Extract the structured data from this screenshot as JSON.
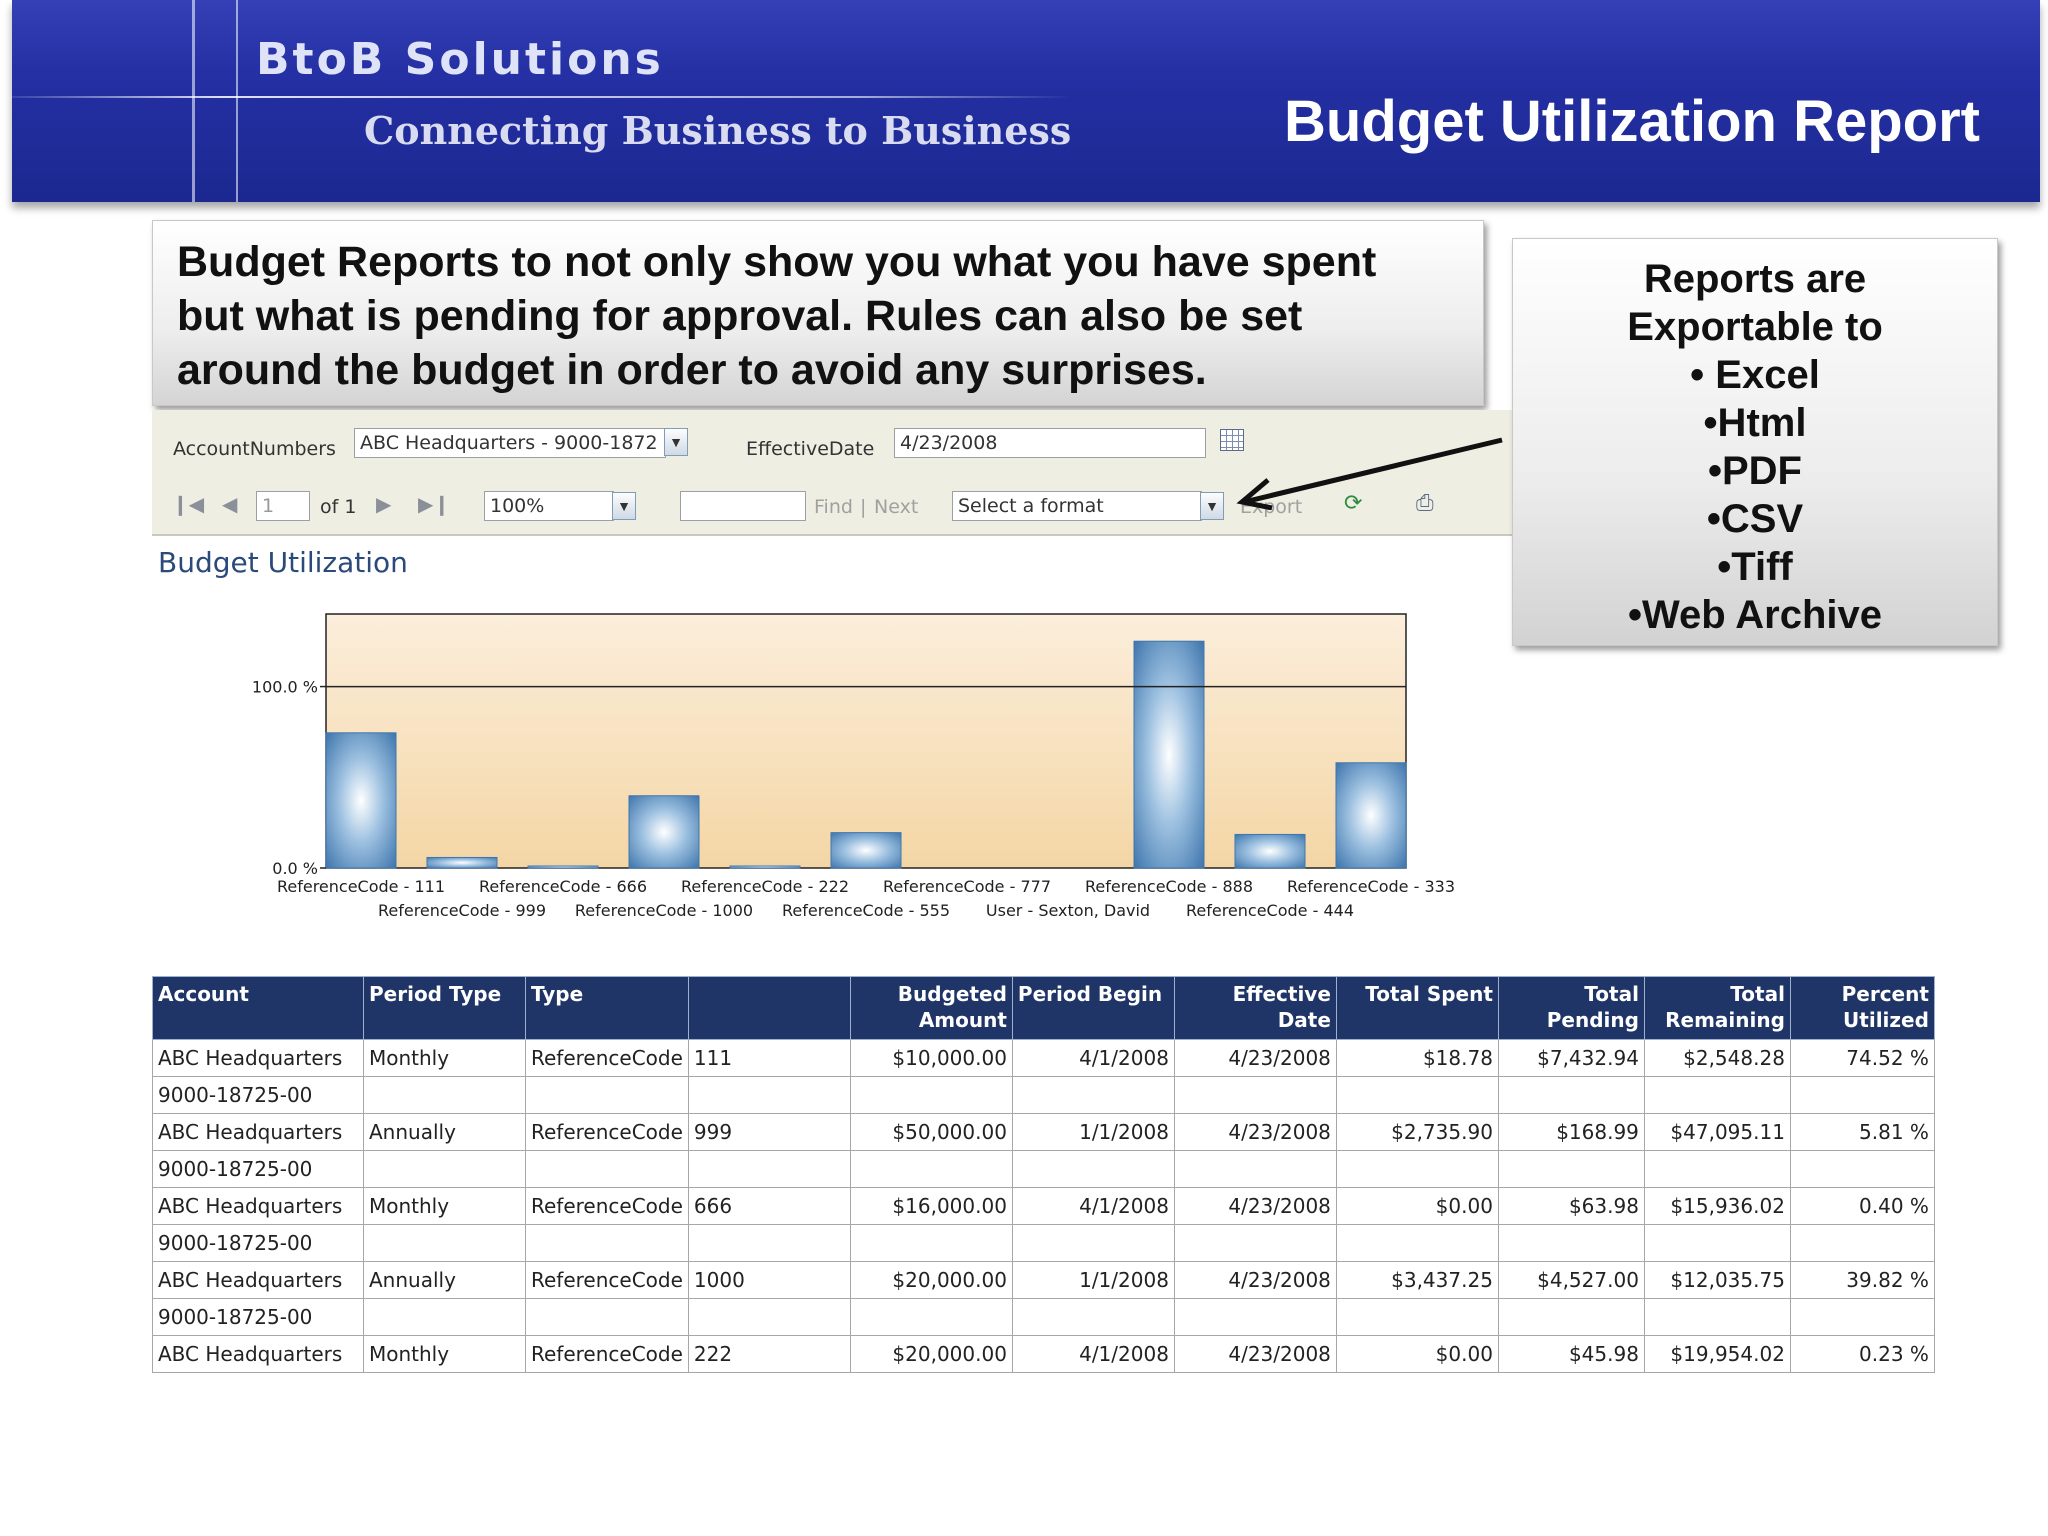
{
  "banner": {
    "brand": "BtoB Solutions",
    "tagline": "Connecting Business to Business",
    "title": "Budget Utilization Report"
  },
  "callout_main": {
    "lines": [
      "Budget Reports to not only show you what you have spent",
      "but what is pending for approval.  Rules can also be set",
      "around the budget in order to avoid any surprises."
    ]
  },
  "callout_side": {
    "lines": [
      "Reports are",
      "Exportable to",
      "• Excel",
      "•Html",
      "•PDF",
      "•CSV",
      "•Tiff",
      "•Web Archive"
    ]
  },
  "params": {
    "account_label": "AccountNumbers",
    "account_value": "ABC Headquarters - 9000-1872",
    "date_label": "EffectiveDate",
    "date_value": "4/23/2008"
  },
  "toolbar": {
    "page_value": "1",
    "page_of": "of 1",
    "zoom": "100%",
    "find": "Find",
    "separator": "|",
    "next": "Next",
    "format": "Select a format",
    "export": "Export"
  },
  "section_title": "Budget Utilization",
  "chart_data": {
    "type": "bar",
    "title": "",
    "xlabel": "",
    "ylabel": "",
    "y_tick_labels": [
      "0.0 %",
      "100.0 %"
    ],
    "ylim": [
      0,
      140
    ],
    "categories": [
      "ReferenceCode - 111",
      "ReferenceCode - 999",
      "ReferenceCode - 666",
      "ReferenceCode - 1000",
      "ReferenceCode - 222",
      "ReferenceCode - 555",
      "ReferenceCode - 777",
      "User - Sexton, David",
      "ReferenceCode - 888",
      "ReferenceCode - 444",
      "ReferenceCode - 333"
    ],
    "values": [
      74.52,
      5.81,
      0.4,
      39.82,
      0.23,
      19.5,
      0,
      0,
      125,
      18.5,
      58
    ],
    "grid": false,
    "legend": "none",
    "colors": {
      "bar_edge": "#3f76ad",
      "bar_center": "#ffffff",
      "plot_top": "#fbeedb",
      "plot_bottom": "#f4d6a5"
    }
  },
  "table": {
    "headers": [
      {
        "label": "Account",
        "align": "l"
      },
      {
        "label": "Period Type",
        "align": "l"
      },
      {
        "label": "Type",
        "align": "l"
      },
      {
        "label": "",
        "align": "l"
      },
      {
        "label": "Budgeted Amount",
        "align": "r"
      },
      {
        "label": "Period Begin",
        "align": "l"
      },
      {
        "label": "Effective Date",
        "align": "r"
      },
      {
        "label": "Total Spent",
        "align": "r"
      },
      {
        "label": "Total Pending",
        "align": "r"
      },
      {
        "label": "Total Remaining",
        "align": "r"
      },
      {
        "label": "Percent Utilized",
        "align": "r"
      }
    ],
    "rows": [
      [
        "ABC Headquarters",
        "Monthly",
        "ReferenceCode",
        "111",
        "$10,000.00",
        "4/1/2008",
        "4/23/2008",
        "$18.78",
        "$7,432.94",
        "$2,548.28",
        "74.52 %"
      ],
      [
        "9000-18725-00",
        "",
        "",
        "",
        "",
        "",
        "",
        "",
        "",
        "",
        ""
      ],
      [
        "ABC Headquarters",
        "Annually",
        "ReferenceCode",
        "999",
        "$50,000.00",
        "1/1/2008",
        "4/23/2008",
        "$2,735.90",
        "$168.99",
        "$47,095.11",
        "5.81 %"
      ],
      [
        "9000-18725-00",
        "",
        "",
        "",
        "",
        "",
        "",
        "",
        "",
        "",
        ""
      ],
      [
        "ABC Headquarters",
        "Monthly",
        "ReferenceCode",
        "666",
        "$16,000.00",
        "4/1/2008",
        "4/23/2008",
        "$0.00",
        "$63.98",
        "$15,936.02",
        "0.40 %"
      ],
      [
        "9000-18725-00",
        "",
        "",
        "",
        "",
        "",
        "",
        "",
        "",
        "",
        ""
      ],
      [
        "ABC Headquarters",
        "Annually",
        "ReferenceCode",
        "1000",
        "$20,000.00",
        "1/1/2008",
        "4/23/2008",
        "$3,437.25",
        "$4,527.00",
        "$12,035.75",
        "39.82 %"
      ],
      [
        "9000-18725-00",
        "",
        "",
        "",
        "",
        "",
        "",
        "",
        "",
        "",
        ""
      ],
      [
        "ABC Headquarters",
        "Monthly",
        "ReferenceCode",
        "222",
        "$20,000.00",
        "4/1/2008",
        "4/23/2008",
        "$0.00",
        "$45.98",
        "$19,954.02",
        "0.23 %"
      ]
    ],
    "cell_align": [
      "l",
      "l",
      "l",
      "l",
      "r",
      "r",
      "r",
      "r",
      "r",
      "r",
      "r"
    ]
  },
  "colors": {
    "banner": "#2430a4",
    "header_bg": "#1f3567",
    "toolbar_bg": "#efeee2",
    "section_title": "#2b4a7a"
  }
}
